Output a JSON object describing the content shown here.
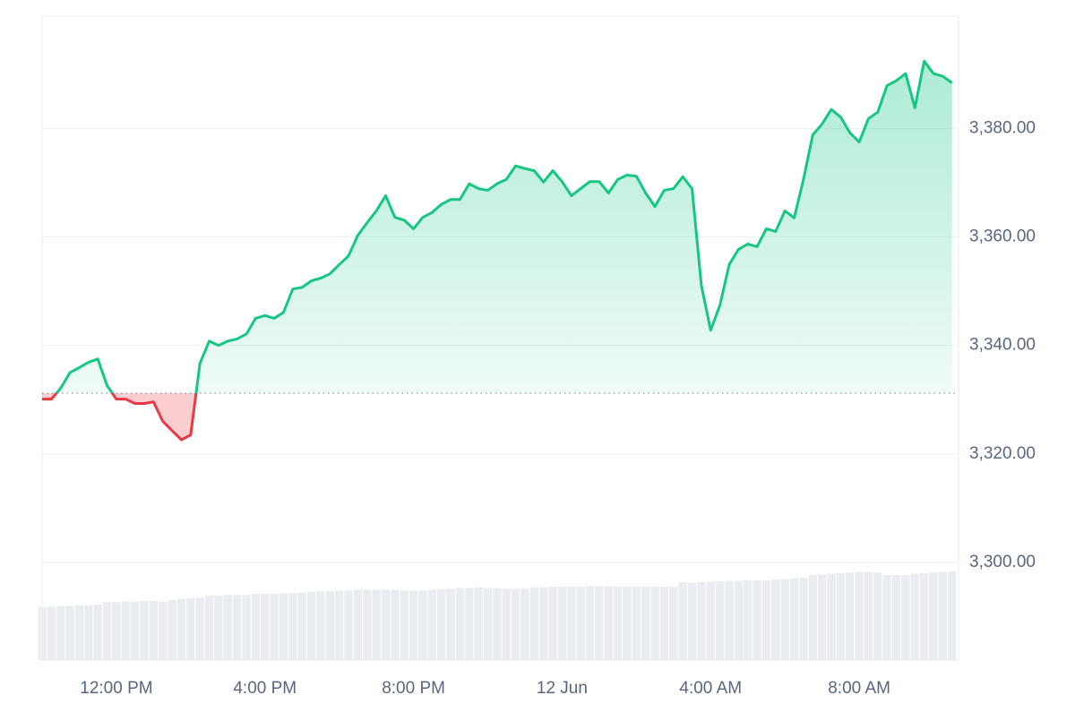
{
  "chart_data": {
    "type": "line",
    "series": [
      {
        "name": "price",
        "color": "#16c784",
        "below_color": "#ea3943",
        "values": [
          3330.1,
          3330.1,
          3332.1,
          3335.0,
          3335.9,
          3336.9,
          3337.5,
          3332.6,
          3330.1,
          3330.1,
          3329.3,
          3329.3,
          3329.6,
          3326.0,
          3324.3,
          3322.6,
          3323.5,
          3336.7,
          3340.8,
          3340.0,
          3340.8,
          3341.2,
          3342.1,
          3345.0,
          3345.5,
          3345.0,
          3346.1,
          3350.4,
          3350.7,
          3351.9,
          3352.4,
          3353.2,
          3354.9,
          3356.5,
          3360.3,
          3362.6,
          3364.8,
          3367.6,
          3363.6,
          3363.1,
          3361.5,
          3363.6,
          3364.5,
          3366.0,
          3366.9,
          3366.9,
          3369.8,
          3368.9,
          3368.6,
          3369.8,
          3370.6,
          3373.1,
          3372.6,
          3372.2,
          3370.1,
          3372.2,
          3370.2,
          3367.6,
          3368.9,
          3370.2,
          3370.2,
          3368.1,
          3370.6,
          3371.4,
          3371.2,
          3368.1,
          3365.6,
          3368.6,
          3368.9,
          3371.1,
          3368.9,
          3351.1,
          3342.8,
          3347.4,
          3354.9,
          3357.7,
          3358.7,
          3358.2,
          3361.5,
          3361.0,
          3364.8,
          3363.5,
          3370.6,
          3378.8,
          3380.8,
          3383.5,
          3382.1,
          3379.2,
          3377.5,
          3381.8,
          3383.0,
          3387.9,
          3388.8,
          3390.1,
          3383.8,
          3392.4,
          3390.1,
          3389.6,
          3388.4
        ]
      },
      {
        "name": "volume",
        "type": "bar",
        "axis": "y2",
        "color": "#e9edf1",
        "values": [
          8.2,
          8.3,
          8.4,
          8.4,
          8.5,
          8.5,
          8.6,
          9.0,
          9.0,
          9.1,
          9.1,
          9.2,
          9.2,
          9.1,
          9.3,
          9.5,
          9.6,
          9.7,
          10.0,
          10.0,
          10.1,
          10.1,
          10.1,
          10.3,
          10.3,
          10.3,
          10.4,
          10.4,
          10.5,
          10.6,
          10.7,
          10.7,
          10.8,
          10.8,
          10.9,
          10.9,
          10.9,
          10.9,
          10.9,
          10.8,
          10.8,
          10.8,
          10.9,
          11.0,
          11.1,
          11.2,
          11.2,
          11.3,
          11.2,
          11.2,
          11.1,
          11.1,
          11.1,
          11.3,
          11.3,
          11.4,
          11.4,
          11.4,
          11.4,
          11.5,
          11.5,
          11.5,
          11.4,
          11.4,
          11.4,
          11.4,
          11.4,
          11.4,
          11.4,
          12.1,
          12.0,
          12.1,
          12.2,
          12.3,
          12.3,
          12.3,
          12.4,
          12.4,
          12.4,
          12.5,
          12.6,
          12.7,
          12.8,
          13.2,
          13.3,
          13.4,
          13.5,
          13.6,
          13.7,
          13.7,
          13.6,
          13.2,
          13.2,
          13.2,
          13.4,
          13.5,
          13.6,
          13.7,
          13.8
        ]
      }
    ],
    "baseline": 3331.2,
    "xlim": [
      0,
      98.7
    ],
    "xticks": [
      {
        "value": 8,
        "label": "12:00 PM"
      },
      {
        "value": 24,
        "label": "4:00 PM"
      },
      {
        "value": 40,
        "label": "8:00 PM"
      },
      {
        "value": 56,
        "label": "12 Jun"
      },
      {
        "value": 72,
        "label": "4:00 AM"
      },
      {
        "value": 88,
        "label": "8:00 AM"
      }
    ],
    "ylim": [
      3282,
      3400.7
    ],
    "yticks": [
      {
        "value": 3300,
        "label": "3,300.00"
      },
      {
        "value": 3320,
        "label": "3,320.00"
      },
      {
        "value": 3340,
        "label": "3,340.00"
      },
      {
        "value": 3360,
        "label": "3,360.00"
      },
      {
        "value": 3380,
        "label": "3,380.00"
      }
    ],
    "y2lim": [
      0,
      100
    ],
    "grid": true
  }
}
